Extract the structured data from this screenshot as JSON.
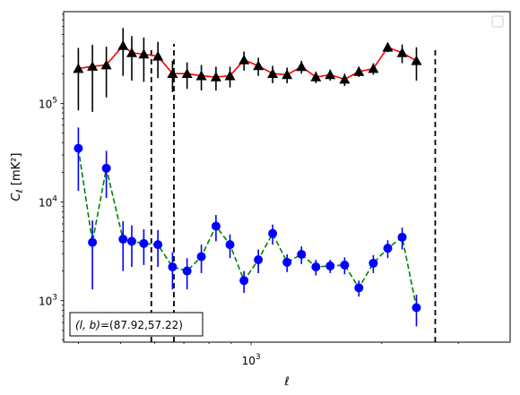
{
  "chart_data": {
    "type": "scatter",
    "xscale": "log",
    "yscale": "log",
    "xlim": [
      370,
      3950
    ],
    "ylim": [
      380,
      850000
    ],
    "xlabel": "ℓ",
    "ylabel": "C_ℓ  [mK²]",
    "x_tick_labels": [
      {
        "value": 1000,
        "label": "10^3"
      }
    ],
    "y_tick_labels": [
      {
        "value": 1000,
        "label": "10^3"
      },
      {
        "value": 10000,
        "label": "10^4"
      },
      {
        "value": 100000,
        "label": "10^5"
      }
    ],
    "annotation": "(l, b)=(87.92,57.22)",
    "vlines": [
      589,
      664,
      2655
    ],
    "legend_location": "top-right",
    "series": [
      {
        "color": "#ff0000",
        "marker": "triangle",
        "marker_color": "#000000",
        "linestyle": "solid",
        "points": [
          {
            "x": 400,
            "y": 225000,
            "err": [
              140000,
              140000
            ]
          },
          {
            "x": 431,
            "y": 237000,
            "err": [
              155000,
              155000
            ]
          },
          {
            "x": 464,
            "y": 245000,
            "err": [
              130000,
              130000
            ]
          },
          {
            "x": 507,
            "y": 385000,
            "err": [
              195000,
              195000
            ]
          },
          {
            "x": 531,
            "y": 325000,
            "err": [
              155000,
              155000
            ]
          },
          {
            "x": 566,
            "y": 315000,
            "err": [
              150000,
              150000
            ]
          },
          {
            "x": 610,
            "y": 300000,
            "err": [
              120000,
              120000
            ]
          },
          {
            "x": 659,
            "y": 200000,
            "err": [
              70000,
              70000
            ]
          },
          {
            "x": 712,
            "y": 200000,
            "err": [
              60000,
              60000
            ]
          },
          {
            "x": 768,
            "y": 190000,
            "err": [
              55000,
              55000
            ]
          },
          {
            "x": 830,
            "y": 185000,
            "err": [
              50000,
              50000
            ]
          },
          {
            "x": 894,
            "y": 190000,
            "err": [
              45000,
              45000
            ]
          },
          {
            "x": 963,
            "y": 275000,
            "err": [
              60000,
              60000
            ]
          },
          {
            "x": 1039,
            "y": 240000,
            "err": [
              50000,
              50000
            ]
          },
          {
            "x": 1121,
            "y": 200000,
            "err": [
              40000,
              40000
            ]
          },
          {
            "x": 1210,
            "y": 195000,
            "err": [
              35000,
              35000
            ]
          },
          {
            "x": 1306,
            "y": 235000,
            "err": [
              35000,
              35000
            ]
          },
          {
            "x": 1410,
            "y": 185000,
            "err": [
              25000,
              25000
            ]
          },
          {
            "x": 1521,
            "y": 195000,
            "err": [
              25000,
              25000
            ]
          },
          {
            "x": 1642,
            "y": 175000,
            "err": [
              25000,
              25000
            ]
          },
          {
            "x": 1771,
            "y": 210000,
            "err": [
              25000,
              25000
            ]
          },
          {
            "x": 1912,
            "y": 225000,
            "err": [
              30000,
              30000
            ]
          },
          {
            "x": 2064,
            "y": 370000,
            "err": [
              40000,
              40000
            ]
          },
          {
            "x": 2228,
            "y": 325000,
            "err": [
              70000,
              70000
            ]
          },
          {
            "x": 2403,
            "y": 270000,
            "err": [
              100000,
              100000
            ]
          }
        ]
      },
      {
        "color": "#008000",
        "marker": "circle",
        "marker_color": "#0000ff",
        "linestyle": "dashed",
        "points": [
          {
            "x": 400,
            "y": 35000,
            "err": [
              22000,
              22000
            ]
          },
          {
            "x": 431,
            "y": 3900,
            "err": [
              2600,
              2600
            ]
          },
          {
            "x": 464,
            "y": 22000,
            "err": [
              11000,
              11000
            ]
          },
          {
            "x": 507,
            "y": 4200,
            "err": [
              2200,
              2200
            ]
          },
          {
            "x": 531,
            "y": 4000,
            "err": [
              1800,
              1800
            ]
          },
          {
            "x": 566,
            "y": 3800,
            "err": [
              1500,
              1500
            ]
          },
          {
            "x": 610,
            "y": 3700,
            "err": [
              1500,
              1500
            ]
          },
          {
            "x": 659,
            "y": 2200,
            "err": [
              900,
              900
            ]
          },
          {
            "x": 712,
            "y": 2000,
            "err": [
              700,
              700
            ]
          },
          {
            "x": 768,
            "y": 2800,
            "err": [
              900,
              900
            ]
          },
          {
            "x": 830,
            "y": 5700,
            "err": [
              1700,
              1700
            ]
          },
          {
            "x": 894,
            "y": 3700,
            "err": [
              1000,
              1000
            ]
          },
          {
            "x": 963,
            "y": 1600,
            "err": [
              400,
              400
            ]
          },
          {
            "x": 1039,
            "y": 2600,
            "err": [
              700,
              700
            ]
          },
          {
            "x": 1121,
            "y": 4800,
            "err": [
              1100,
              1100
            ]
          },
          {
            "x": 1210,
            "y": 2450,
            "err": [
              500,
              500
            ]
          },
          {
            "x": 1306,
            "y": 2950,
            "err": [
              600,
              600
            ]
          },
          {
            "x": 1410,
            "y": 2200,
            "err": [
              400,
              400
            ]
          },
          {
            "x": 1521,
            "y": 2250,
            "err": [
              350,
              350
            ]
          },
          {
            "x": 1642,
            "y": 2300,
            "err": [
              450,
              450
            ]
          },
          {
            "x": 1771,
            "y": 1350,
            "err": [
              250,
              250
            ]
          },
          {
            "x": 1912,
            "y": 2400,
            "err": [
              500,
              500
            ]
          },
          {
            "x": 2064,
            "y": 3400,
            "err": [
              700,
              700
            ]
          },
          {
            "x": 2228,
            "y": 4400,
            "err": [
              1100,
              1100
            ]
          },
          {
            "x": 2403,
            "y": 850,
            "err": [
              300,
              300
            ]
          }
        ]
      }
    ]
  }
}
